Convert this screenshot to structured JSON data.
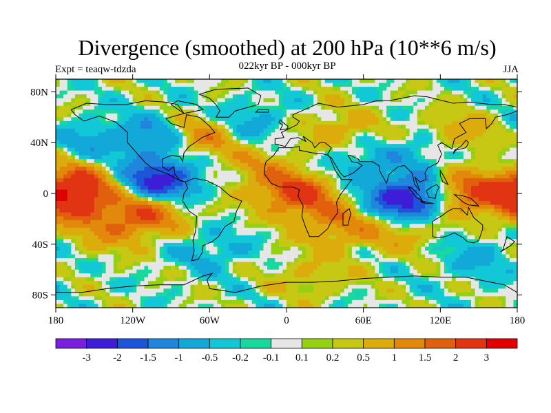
{
  "title": "Divergence (smoothed) at 200 hPa (10**6 m/s)",
  "subtitle": "022kyr BP - 000kyr BP",
  "left_string": "Expt = teaqw-tdzda",
  "right_string": "JJA",
  "chart_data": {
    "type": "heatmap",
    "title": "Divergence (smoothed) at 200 hPa (10**6 m/s)",
    "subtitle": "022kyr BP - 000kyr BP",
    "variable": "Divergence (smoothed)",
    "level": "200 hPa",
    "units": "10**6 m/s",
    "season": "JJA",
    "experiment": "Expt = teaqw-tdzda",
    "xlim": [
      -180,
      180
    ],
    "ylim": [
      -90,
      90
    ],
    "x_ticks": [
      {
        "value": -180,
        "label": "180"
      },
      {
        "value": -120,
        "label": "120W"
      },
      {
        "value": -60,
        "label": "60W"
      },
      {
        "value": 0,
        "label": "0"
      },
      {
        "value": 60,
        "label": "60E"
      },
      {
        "value": 120,
        "label": "120E"
      },
      {
        "value": 180,
        "label": "180"
      }
    ],
    "y_ticks": [
      {
        "value": 80,
        "label": "80N"
      },
      {
        "value": 40,
        "label": "40N"
      },
      {
        "value": 0,
        "label": "0"
      },
      {
        "value": -40,
        "label": "40S"
      },
      {
        "value": -80,
        "label": "80S"
      }
    ],
    "colorbar": {
      "levels": [
        "-3",
        "-2",
        "-1.5",
        "-1",
        "-0.5",
        "-0.2",
        "-0.1",
        "0.1",
        "0.2",
        "0.5",
        "1",
        "1.5",
        "2",
        "3"
      ],
      "colors": [
        "#7a1fdc",
        "#3d1ed6",
        "#1c55d8",
        "#1f86dc",
        "#12a8d8",
        "#12c8d6",
        "#18d89e",
        "#e6e6e6",
        "#96d012",
        "#c6c814",
        "#dcac0c",
        "#e2880a",
        "#e0600e",
        "#e03412",
        "#e10000"
      ]
    },
    "field_features": [
      {
        "name": "neg",
        "lon": -100,
        "lat": 10,
        "value": -2.5
      },
      {
        "name": "neg",
        "lon": -95,
        "lat": 45,
        "value": -1.5
      },
      {
        "name": "pos",
        "lon": -70,
        "lat": 45,
        "value": 1.8
      },
      {
        "name": "pos",
        "lon": -160,
        "lat": 10,
        "value": 1.5
      },
      {
        "name": "pos",
        "lon": -170,
        "lat": -5,
        "value": 2.2
      },
      {
        "name": "pos",
        "lon": -110,
        "lat": -15,
        "value": 1.8
      },
      {
        "name": "pos",
        "lon": 10,
        "lat": 0,
        "value": 2.2
      },
      {
        "name": "neg",
        "lon": 95,
        "lat": -5,
        "value": -2.8
      },
      {
        "name": "pos",
        "lon": 140,
        "lat": 0,
        "value": 2.0
      },
      {
        "name": "neg",
        "lon": 50,
        "lat": 20,
        "value": -0.8
      },
      {
        "name": "pos",
        "lon": 40,
        "lat": 50,
        "value": 0.8
      },
      {
        "name": "pos",
        "lon": 130,
        "lat": 45,
        "value": 1.2
      },
      {
        "name": "neg",
        "lon": 110,
        "lat": 35,
        "value": -1.0
      },
      {
        "name": "pos",
        "lon": 40,
        "lat": -25,
        "value": 1.2
      },
      {
        "name": "pos",
        "lon": 90,
        "lat": -30,
        "value": 0.8
      },
      {
        "name": "pos",
        "lon": -140,
        "lat": -30,
        "value": 0.8
      },
      {
        "name": "neg",
        "lon": -30,
        "lat": 55,
        "value": -0.8
      },
      {
        "name": "neg",
        "lon": -150,
        "lat": 40,
        "value": -0.8
      },
      {
        "name": "neg",
        "lon": -60,
        "lat": -45,
        "value": -0.6
      },
      {
        "name": "pos",
        "lon": 20,
        "lat": -65,
        "value": 0.6
      },
      {
        "name": "neg",
        "lon": 150,
        "lat": -50,
        "value": -0.6
      },
      {
        "name": "pos",
        "lon": -20,
        "lat": 20,
        "value": 0.8
      }
    ]
  }
}
